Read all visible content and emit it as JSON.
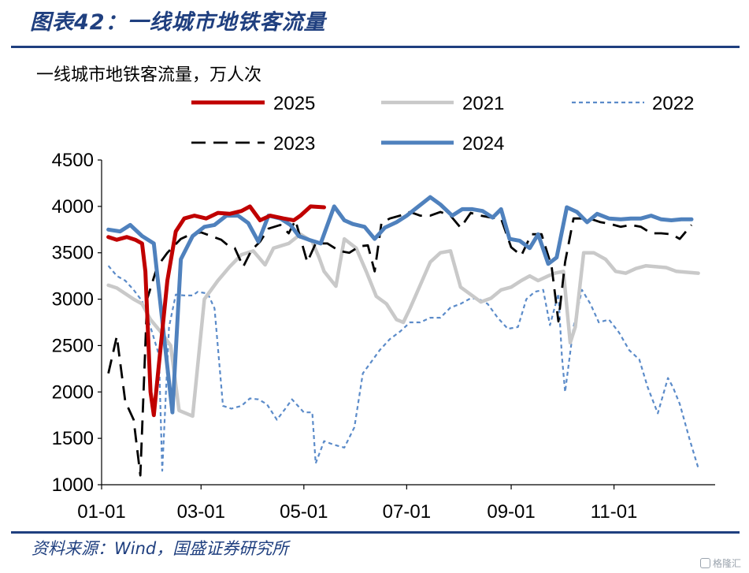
{
  "figure_title": "图表42：一线城市地铁客流量",
  "source": "资料来源：Wind，国盛证券研究所",
  "watermark": "格隆汇",
  "chart_data": {
    "type": "line",
    "title": "一线城市地铁客流量，万人次",
    "xlabel": "",
    "ylabel": "",
    "x_axis": "day of year (Jan 1 – Dec 31)",
    "x_ticks": [
      "01-01",
      "03-01",
      "05-01",
      "07-01",
      "09-01",
      "11-01"
    ],
    "x_tick_days": [
      1,
      60,
      121,
      182,
      244,
      305
    ],
    "xlim": [
      1,
      365
    ],
    "ylim": [
      1000,
      4500
    ],
    "y_ticks": [
      1000,
      1500,
      2000,
      2500,
      3000,
      3500,
      4000,
      4500
    ],
    "grid": false,
    "legend_placement": "top",
    "series": [
      {
        "name": "2025",
        "color": "#c00000",
        "style": "solid",
        "width": 5,
        "points": [
          [
            5,
            3670
          ],
          [
            10,
            3640
          ],
          [
            16,
            3670
          ],
          [
            21,
            3640
          ],
          [
            25,
            3600
          ],
          [
            27,
            3300
          ],
          [
            30,
            2000
          ],
          [
            32,
            1750
          ],
          [
            35,
            2300
          ],
          [
            40,
            3200
          ],
          [
            45,
            3730
          ],
          [
            50,
            3870
          ],
          [
            56,
            3900
          ],
          [
            63,
            3870
          ],
          [
            70,
            3930
          ],
          [
            77,
            3920
          ],
          [
            84,
            3950
          ],
          [
            89,
            4000
          ],
          [
            95,
            3850
          ],
          [
            101,
            3900
          ],
          [
            109,
            3870
          ],
          [
            115,
            3850
          ],
          [
            119,
            3900
          ],
          [
            125,
            4000
          ],
          [
            133,
            3990
          ]
        ]
      },
      {
        "name": "2021",
        "color": "#c9c9c9",
        "style": "solid",
        "width": 4.5,
        "points": [
          [
            5,
            3150
          ],
          [
            10,
            3120
          ],
          [
            20,
            3000
          ],
          [
            25,
            2950
          ],
          [
            30,
            2780
          ],
          [
            36,
            2650
          ],
          [
            42,
            2500
          ],
          [
            47,
            1800
          ],
          [
            55,
            1740
          ],
          [
            62,
            3000
          ],
          [
            70,
            3200
          ],
          [
            77,
            3350
          ],
          [
            84,
            3480
          ],
          [
            91,
            3520
          ],
          [
            98,
            3370
          ],
          [
            103,
            3550
          ],
          [
            112,
            3600
          ],
          [
            119,
            3700
          ],
          [
            126,
            3620
          ],
          [
            130,
            3450
          ],
          [
            133,
            3300
          ],
          [
            140,
            3140
          ],
          [
            145,
            3650
          ],
          [
            152,
            3550
          ],
          [
            158,
            3300
          ],
          [
            164,
            3030
          ],
          [
            170,
            2950
          ],
          [
            176,
            2780
          ],
          [
            180,
            2750
          ],
          [
            184,
            2900
          ],
          [
            190,
            3150
          ],
          [
            196,
            3400
          ],
          [
            202,
            3500
          ],
          [
            208,
            3520
          ],
          [
            214,
            3130
          ],
          [
            220,
            3050
          ],
          [
            226,
            2970
          ],
          [
            232,
            3010
          ],
          [
            238,
            3100
          ],
          [
            244,
            3130
          ],
          [
            250,
            3200
          ],
          [
            255,
            3250
          ],
          [
            260,
            3200
          ],
          [
            266,
            3250
          ],
          [
            270,
            3280
          ],
          [
            275,
            3300
          ],
          [
            279,
            2530
          ],
          [
            282,
            2700
          ],
          [
            287,
            3500
          ],
          [
            293,
            3500
          ],
          [
            300,
            3430
          ],
          [
            306,
            3300
          ],
          [
            312,
            3280
          ],
          [
            318,
            3330
          ],
          [
            324,
            3360
          ],
          [
            330,
            3350
          ],
          [
            336,
            3340
          ],
          [
            342,
            3300
          ],
          [
            348,
            3290
          ],
          [
            355,
            3280
          ]
        ]
      },
      {
        "name": "2022",
        "color": "#5b8bc9",
        "style": "dotted",
        "width": 2.2,
        "points": [
          [
            5,
            3360
          ],
          [
            10,
            3250
          ],
          [
            15,
            3200
          ],
          [
            20,
            3100
          ],
          [
            25,
            2980
          ],
          [
            30,
            2700
          ],
          [
            35,
            2400
          ],
          [
            37,
            1150
          ],
          [
            41,
            2700
          ],
          [
            45,
            3050
          ],
          [
            50,
            3040
          ],
          [
            55,
            3040
          ],
          [
            58,
            3080
          ],
          [
            64,
            3060
          ],
          [
            68,
            2900
          ],
          [
            73,
            1850
          ],
          [
            78,
            1820
          ],
          [
            84,
            1850
          ],
          [
            89,
            1930
          ],
          [
            94,
            1920
          ],
          [
            99,
            1870
          ],
          [
            105,
            1700
          ],
          [
            110,
            1820
          ],
          [
            114,
            1920
          ],
          [
            121,
            1780
          ],
          [
            126,
            1780
          ],
          [
            128,
            1230
          ],
          [
            133,
            1470
          ],
          [
            139,
            1430
          ],
          [
            145,
            1400
          ],
          [
            151,
            1620
          ],
          [
            156,
            2200
          ],
          [
            160,
            2300
          ],
          [
            166,
            2450
          ],
          [
            172,
            2570
          ],
          [
            178,
            2650
          ],
          [
            184,
            2750
          ],
          [
            190,
            2750
          ],
          [
            196,
            2800
          ],
          [
            202,
            2800
          ],
          [
            208,
            2910
          ],
          [
            214,
            2950
          ],
          [
            220,
            3010
          ],
          [
            225,
            3000
          ],
          [
            230,
            2950
          ],
          [
            236,
            2800
          ],
          [
            242,
            2680
          ],
          [
            248,
            2700
          ],
          [
            253,
            3000
          ],
          [
            258,
            3080
          ],
          [
            263,
            3100
          ],
          [
            267,
            2720
          ],
          [
            272,
            3060
          ],
          [
            274,
            2400
          ],
          [
            276,
            2000
          ],
          [
            281,
            2700
          ],
          [
            286,
            3100
          ],
          [
            291,
            2950
          ],
          [
            296,
            2750
          ],
          [
            302,
            2780
          ],
          [
            308,
            2640
          ],
          [
            314,
            2450
          ],
          [
            320,
            2350
          ],
          [
            325,
            2050
          ],
          [
            331,
            1770
          ],
          [
            337,
            2150
          ],
          [
            340,
            2050
          ],
          [
            344,
            1870
          ],
          [
            350,
            1480
          ],
          [
            355,
            1180
          ]
        ]
      },
      {
        "name": "2023",
        "color": "#000000",
        "style": "dashed",
        "width": 2.8,
        "points": [
          [
            5,
            2200
          ],
          [
            10,
            2600
          ],
          [
            15,
            1900
          ],
          [
            20,
            1700
          ],
          [
            24,
            1100
          ],
          [
            28,
            3000
          ],
          [
            34,
            3350
          ],
          [
            40,
            3500
          ],
          [
            48,
            3650
          ],
          [
            54,
            3700
          ],
          [
            60,
            3720
          ],
          [
            66,
            3680
          ],
          [
            72,
            3640
          ],
          [
            76,
            3580
          ],
          [
            80,
            3550
          ],
          [
            85,
            3350
          ],
          [
            90,
            3530
          ],
          [
            95,
            3620
          ],
          [
            100,
            3760
          ],
          [
            107,
            3800
          ],
          [
            112,
            3710
          ],
          [
            116,
            3850
          ],
          [
            123,
            3400
          ],
          [
            128,
            3600
          ],
          [
            135,
            3600
          ],
          [
            142,
            3520
          ],
          [
            148,
            3500
          ],
          [
            154,
            3570
          ],
          [
            159,
            3580
          ],
          [
            163,
            3300
          ],
          [
            167,
            3820
          ],
          [
            172,
            3870
          ],
          [
            178,
            3900
          ],
          [
            184,
            3940
          ],
          [
            190,
            3900
          ],
          [
            196,
            3900
          ],
          [
            202,
            3940
          ],
          [
            208,
            3900
          ],
          [
            214,
            3770
          ],
          [
            220,
            3930
          ],
          [
            226,
            3900
          ],
          [
            232,
            3880
          ],
          [
            238,
            3870
          ],
          [
            244,
            3560
          ],
          [
            250,
            3470
          ],
          [
            256,
            3700
          ],
          [
            262,
            3700
          ],
          [
            268,
            3350
          ],
          [
            272,
            2760
          ],
          [
            276,
            3400
          ],
          [
            281,
            3870
          ],
          [
            286,
            3870
          ],
          [
            292,
            3860
          ],
          [
            297,
            3830
          ],
          [
            303,
            3810
          ],
          [
            309,
            3780
          ],
          [
            315,
            3800
          ],
          [
            321,
            3780
          ],
          [
            327,
            3710
          ],
          [
            333,
            3710
          ],
          [
            339,
            3700
          ],
          [
            344,
            3650
          ],
          [
            351,
            3800
          ]
        ]
      },
      {
        "name": "2024",
        "color": "#4f81bd",
        "style": "solid",
        "width": 5,
        "points": [
          [
            5,
            3750
          ],
          [
            12,
            3730
          ],
          [
            18,
            3800
          ],
          [
            25,
            3680
          ],
          [
            32,
            3600
          ],
          [
            38,
            2600
          ],
          [
            43,
            1780
          ],
          [
            48,
            3430
          ],
          [
            55,
            3680
          ],
          [
            62,
            3780
          ],
          [
            68,
            3800
          ],
          [
            75,
            3900
          ],
          [
            82,
            3900
          ],
          [
            88,
            3820
          ],
          [
            94,
            3620
          ],
          [
            100,
            3900
          ],
          [
            107,
            3870
          ],
          [
            113,
            3800
          ],
          [
            118,
            3680
          ],
          [
            124,
            3640
          ],
          [
            131,
            3600
          ],
          [
            139,
            4000
          ],
          [
            145,
            3850
          ],
          [
            150,
            3810
          ],
          [
            157,
            3780
          ],
          [
            163,
            3650
          ],
          [
            169,
            3770
          ],
          [
            176,
            3830
          ],
          [
            182,
            3900
          ],
          [
            189,
            4000
          ],
          [
            196,
            4100
          ],
          [
            202,
            4020
          ],
          [
            209,
            3900
          ],
          [
            215,
            3970
          ],
          [
            221,
            3970
          ],
          [
            227,
            3950
          ],
          [
            233,
            3880
          ],
          [
            238,
            3970
          ],
          [
            243,
            3650
          ],
          [
            249,
            3630
          ],
          [
            255,
            3550
          ],
          [
            260,
            3700
          ],
          [
            266,
            3380
          ],
          [
            271,
            3450
          ],
          [
            277,
            3990
          ],
          [
            283,
            3940
          ],
          [
            289,
            3830
          ],
          [
            295,
            3920
          ],
          [
            302,
            3870
          ],
          [
            309,
            3860
          ],
          [
            315,
            3870
          ],
          [
            321,
            3870
          ],
          [
            327,
            3900
          ],
          [
            333,
            3860
          ],
          [
            339,
            3850
          ],
          [
            345,
            3860
          ],
          [
            351,
            3860
          ]
        ]
      }
    ]
  }
}
